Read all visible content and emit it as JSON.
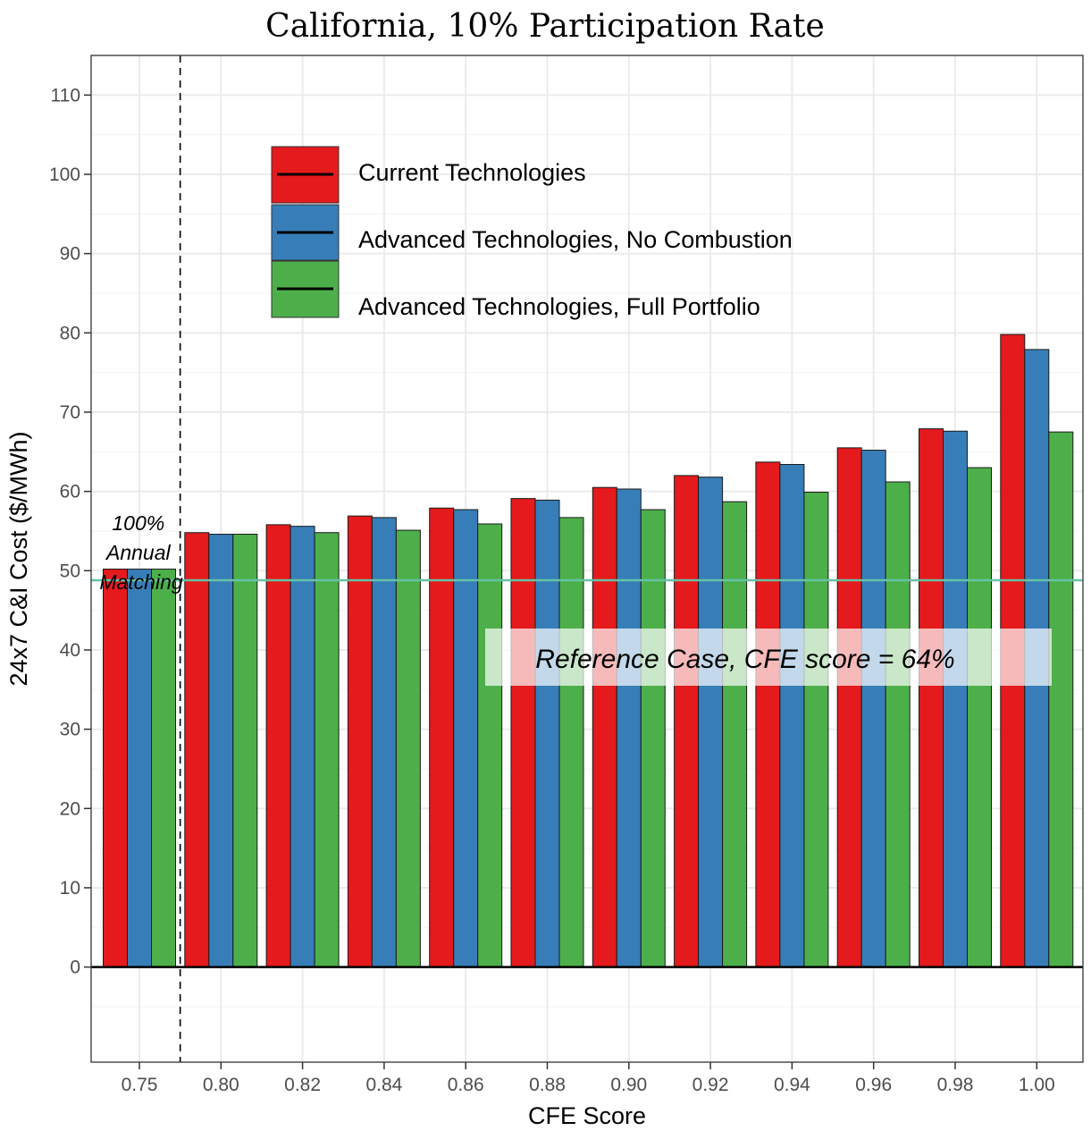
{
  "chart_data": {
    "type": "bar",
    "title": "California, 10% Participation Rate",
    "xlabel": "CFE Score",
    "ylabel": "24x7 C&I Cost ($/MWh)",
    "ylim": [
      -12,
      115
    ],
    "yticks": [
      0,
      10,
      20,
      30,
      40,
      50,
      60,
      70,
      80,
      90,
      100,
      110
    ],
    "grid": true,
    "legend_position": "top-left",
    "categories": [
      "0.75",
      "0.80",
      "0.82",
      "0.84",
      "0.86",
      "0.88",
      "0.90",
      "0.92",
      "0.94",
      "0.96",
      "0.98",
      "1.00"
    ],
    "series": [
      {
        "name": "Current Technologies",
        "color": "#e41a1c",
        "values": [
          50.2,
          54.8,
          55.8,
          56.9,
          57.9,
          59.1,
          60.5,
          62.0,
          63.7,
          65.5,
          67.9,
          79.8
        ]
      },
      {
        "name": "Advanced Technologies, No Combustion",
        "color": "#377eb8",
        "values": [
          50.2,
          54.6,
          55.6,
          56.7,
          57.7,
          58.9,
          60.3,
          61.8,
          63.4,
          65.2,
          67.6,
          77.9
        ]
      },
      {
        "name": "Advanced Technologies, Full Portfolio",
        "color": "#4daf4a",
        "values": [
          50.2,
          54.6,
          54.8,
          55.1,
          55.9,
          56.7,
          57.7,
          58.7,
          59.9,
          61.2,
          63.0,
          67.5
        ]
      }
    ],
    "annotations": {
      "annual_matching": [
        "100%",
        "Annual",
        "Matching"
      ],
      "reference_label": "Reference Case, CFE score = 64%",
      "reference_value": 48.8,
      "reference_color": "#66c2a5"
    }
  }
}
